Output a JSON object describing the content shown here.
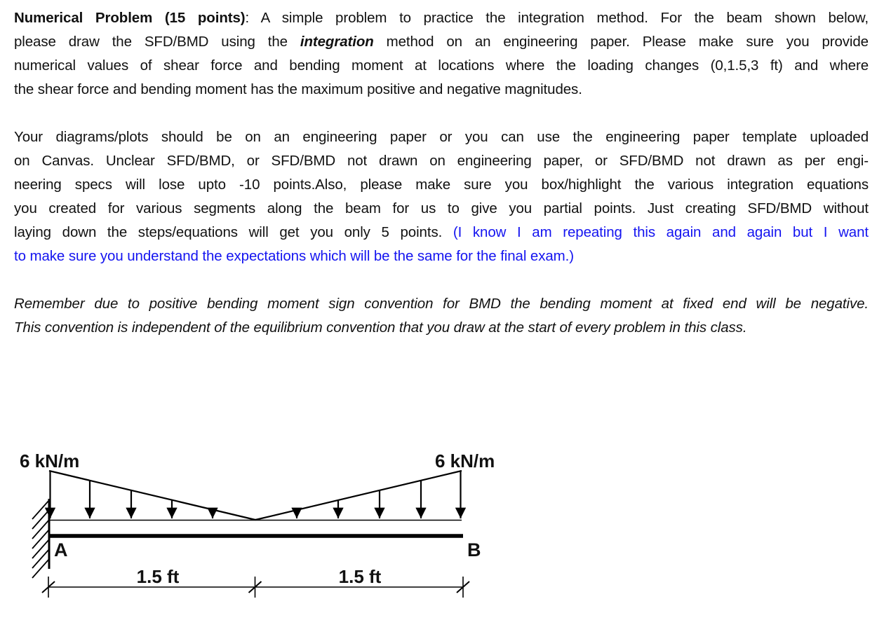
{
  "colors": {
    "text": "#111111",
    "blue": "#1414f0",
    "background": "#ffffff",
    "line": "#000000"
  },
  "problem": {
    "paragraphs": [
      {
        "italic": false,
        "lines": [
          {
            "justify": true,
            "segments": [
              {
                "text": "Numerical Problem (15 points)",
                "bold": true
              },
              {
                "text": ": A simple problem to practice the integration method. For the beam shown below,"
              }
            ]
          },
          {
            "justify": true,
            "segments": [
              {
                "text": "please draw the SFD/BMD using the "
              },
              {
                "text": "integration",
                "bold": true,
                "italic": true
              },
              {
                "text": " method on an engineering paper. Please make sure you provide"
              }
            ]
          },
          {
            "justify": true,
            "segments": [
              {
                "text": "numerical values of shear force and bending moment at locations where the loading changes (0,1.5,3 ft) and where"
              }
            ]
          },
          {
            "justify": false,
            "segments": [
              {
                "text": "the shear force and bending moment has the maximum positive and negative magnitudes."
              }
            ]
          }
        ]
      },
      {
        "italic": false,
        "lines": [
          {
            "justify": true,
            "segments": [
              {
                "text": "Your diagrams/plots should be on an engineering paper or you can use the engineering paper template uploaded"
              }
            ]
          },
          {
            "justify": true,
            "segments": [
              {
                "text": "on Canvas. Unclear SFD/BMD, or SFD/BMD not drawn on engineering paper, or SFD/BMD not drawn as per engi-"
              }
            ]
          },
          {
            "justify": true,
            "segments": [
              {
                "text": "neering specs will lose upto -10 points.Also, please make sure you box/highlight the various integration equations"
              }
            ]
          },
          {
            "justify": true,
            "segments": [
              {
                "text": "you created for various segments along the beam for us to give you partial points. Just creating SFD/BMD without"
              }
            ]
          },
          {
            "justify": true,
            "segments": [
              {
                "text": "laying down the steps/equations will get you only 5 points. "
              },
              {
                "text": "(I know I am repeating this again and again but I want",
                "color": "blue"
              }
            ]
          },
          {
            "justify": false,
            "segments": [
              {
                "text": "to make sure you understand the expectations which will be the same for the final exam.)",
                "color": "blue"
              }
            ]
          }
        ]
      },
      {
        "italic": true,
        "lines": [
          {
            "justify": true,
            "segments": [
              {
                "text": "Remember due to positive bending moment sign convention for BMD the bending moment at fixed end will be negative."
              }
            ]
          },
          {
            "justify": false,
            "segments": [
              {
                "text": "This convention is independent of the equilibrium convention that you draw at the start of every problem in this class."
              }
            ]
          }
        ]
      }
    ]
  },
  "figure": {
    "left_load_label": "6 kN/m",
    "right_load_label": "6 kN/m",
    "point_a_label": "A",
    "point_b_label": "B",
    "left_span_label": "1.5 ft",
    "right_span_label": "1.5 ft"
  }
}
